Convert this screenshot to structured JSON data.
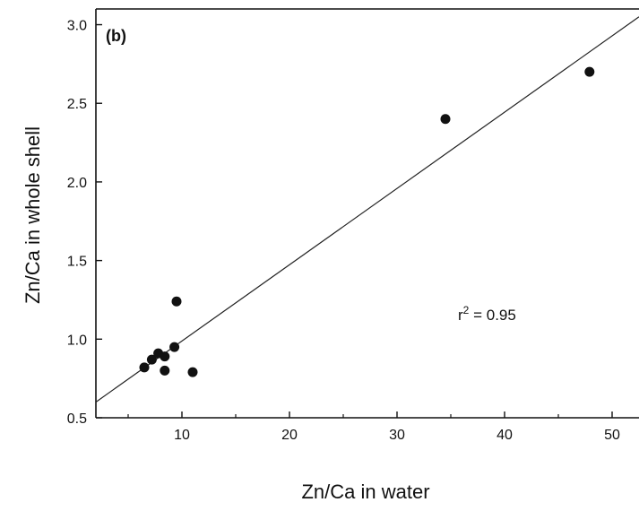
{
  "chart_data": {
    "type": "scatter",
    "panel_label": "(b)",
    "xlabel": "Zn/Ca in water",
    "ylabel": "Zn/Ca in whole shell",
    "xlim": [
      2,
      52.5
    ],
    "ylim": [
      0.5,
      3.1
    ],
    "xticks": [
      10,
      20,
      30,
      40,
      50
    ],
    "xtick_labels": [
      "10",
      "20",
      "30",
      "40",
      "50"
    ],
    "yticks": [
      0.5,
      1.0,
      1.5,
      2.0,
      2.5,
      3.0
    ],
    "ytick_labels": [
      "0.5",
      "1.0",
      "1.5",
      "2.0",
      "2.5",
      "3.0"
    ],
    "points": [
      {
        "x": 6.5,
        "y": 0.82
      },
      {
        "x": 7.2,
        "y": 0.87
      },
      {
        "x": 7.8,
        "y": 0.91
      },
      {
        "x": 8.4,
        "y": 0.89
      },
      {
        "x": 8.4,
        "y": 0.8
      },
      {
        "x": 9.3,
        "y": 0.95
      },
      {
        "x": 9.5,
        "y": 1.24
      },
      {
        "x": 11.0,
        "y": 0.79
      },
      {
        "x": 34.5,
        "y": 2.4
      },
      {
        "x": 47.9,
        "y": 2.7
      }
    ],
    "regression_line": {
      "x": [
        2,
        52.5
      ],
      "y": [
        0.6,
        3.05
      ]
    },
    "annotation": {
      "text_base": "r",
      "text_sup": "2",
      "text_rest": " = 0.95"
    },
    "grid": false,
    "marker_color": "#111111",
    "line_color": "#222222"
  }
}
